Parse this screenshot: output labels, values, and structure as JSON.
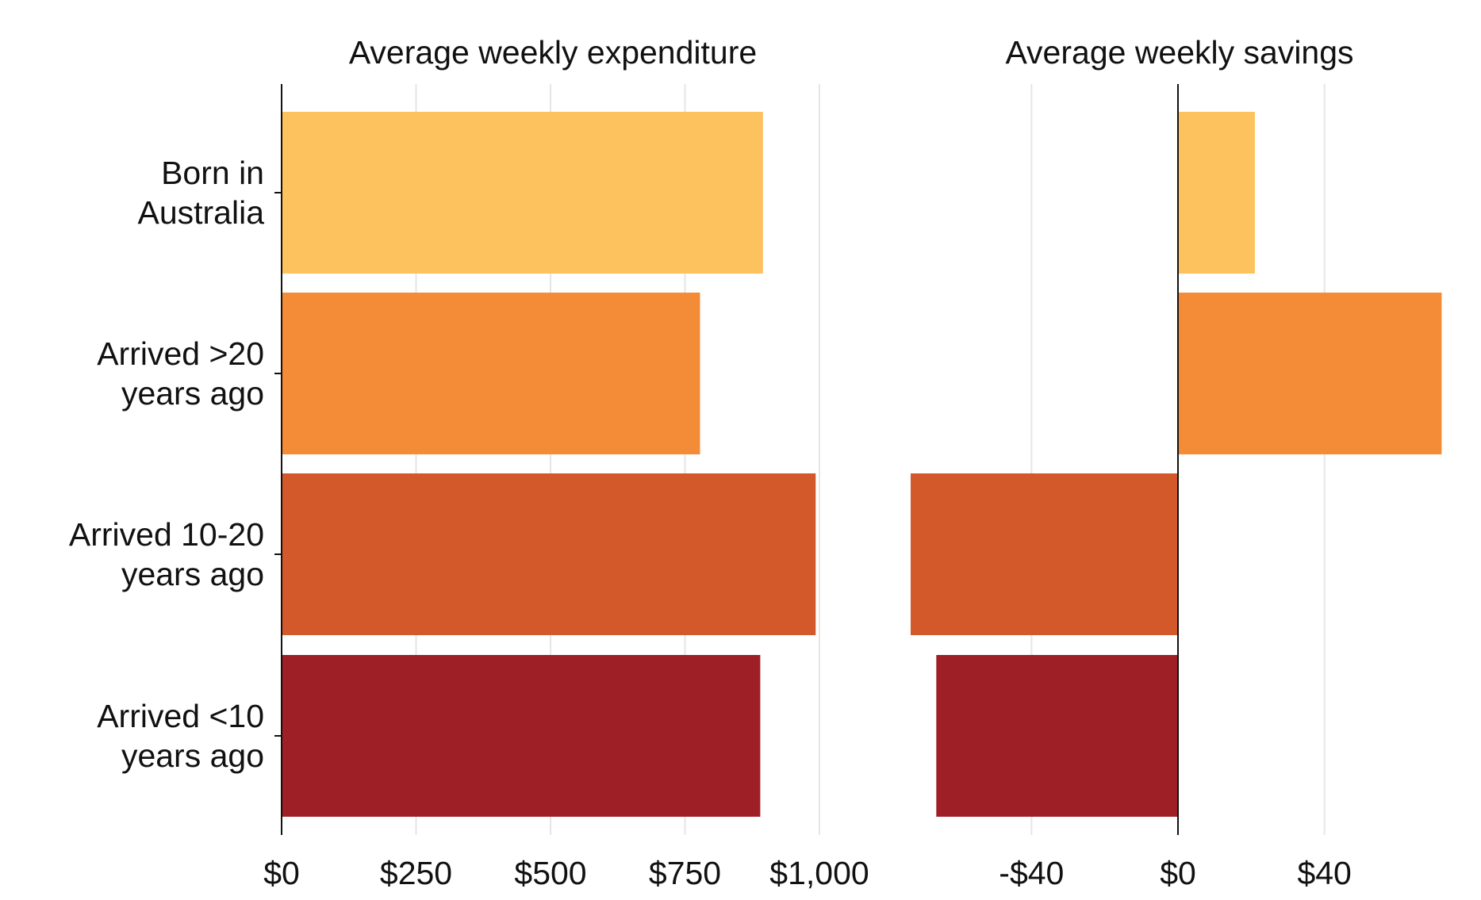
{
  "chart_data": [
    {
      "type": "bar",
      "orientation": "horizontal",
      "title": "Average weekly expenditure",
      "categories": [
        "Born in\nAustralia",
        "Arrived >20\nyears ago",
        "Arrived 10-20\nyears ago",
        "Arrived <10\nyears ago"
      ],
      "values": [
        895,
        778,
        993,
        890
      ],
      "colors": [
        "#FDC25E",
        "#F48B36",
        "#D4592A",
        "#9E1F26"
      ],
      "xlim": [
        0,
        1000
      ],
      "xticks": [
        0,
        250,
        500,
        750,
        1000
      ],
      "xtick_labels": [
        "$0",
        "$250",
        "$500",
        "$750",
        "$1,000"
      ],
      "grid": true
    },
    {
      "type": "bar",
      "orientation": "horizontal",
      "title": "Average weekly savings",
      "categories": [
        "Born in\nAustralia",
        "Arrived >20\nyears ago",
        "Arrived 10-20\nyears ago",
        "Arrived <10\nyears ago"
      ],
      "values": [
        21,
        72,
        -73,
        -66
      ],
      "colors": [
        "#FDC25E",
        "#F48B36",
        "#D4592A",
        "#9E1F26"
      ],
      "xlim": [
        -73,
        73
      ],
      "xticks": [
        -40,
        0,
        40
      ],
      "xtick_labels": [
        "-$40",
        "$0",
        "$40"
      ],
      "grid": true
    }
  ]
}
